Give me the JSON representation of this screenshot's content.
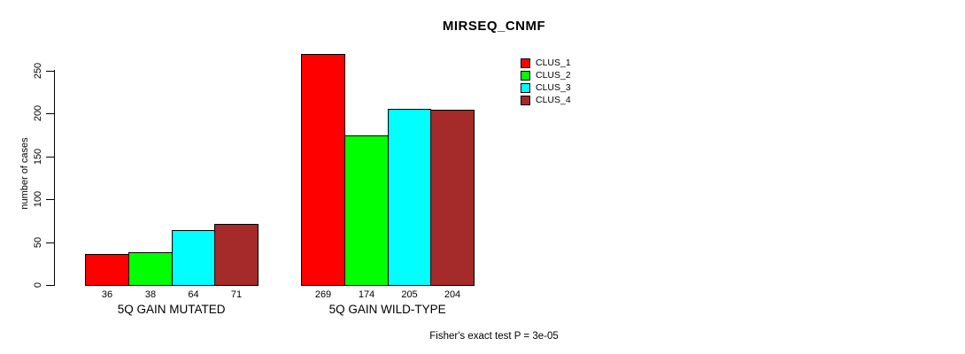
{
  "chart_data": {
    "type": "bar",
    "title": "MIRSEQ_CNMF",
    "ylabel": "number of cases",
    "xlabel": "",
    "categories": [
      "5Q GAIN MUTATED",
      "5Q GAIN WILD-TYPE"
    ],
    "series": [
      {
        "name": "CLUS_1",
        "color": "#ff0000",
        "values": [
          36,
          269
        ]
      },
      {
        "name": "CLUS_2",
        "color": "#00ff00",
        "values": [
          38,
          174
        ]
      },
      {
        "name": "CLUS_3",
        "color": "#00ffff",
        "values": [
          64,
          205
        ]
      },
      {
        "name": "CLUS_4",
        "color": "#a52a2a",
        "values": [
          71,
          204
        ]
      }
    ],
    "bar_value_labels": [
      [
        "36",
        "38",
        "64",
        "71"
      ],
      [
        "269",
        "174",
        "205",
        "204"
      ]
    ],
    "yticks": [
      0,
      50,
      100,
      150,
      200,
      250
    ],
    "ylim": [
      0,
      280
    ],
    "grid": false,
    "legend_position": "right-of-plot",
    "annotation": "Fisher's exact test P = 3e-05"
  }
}
